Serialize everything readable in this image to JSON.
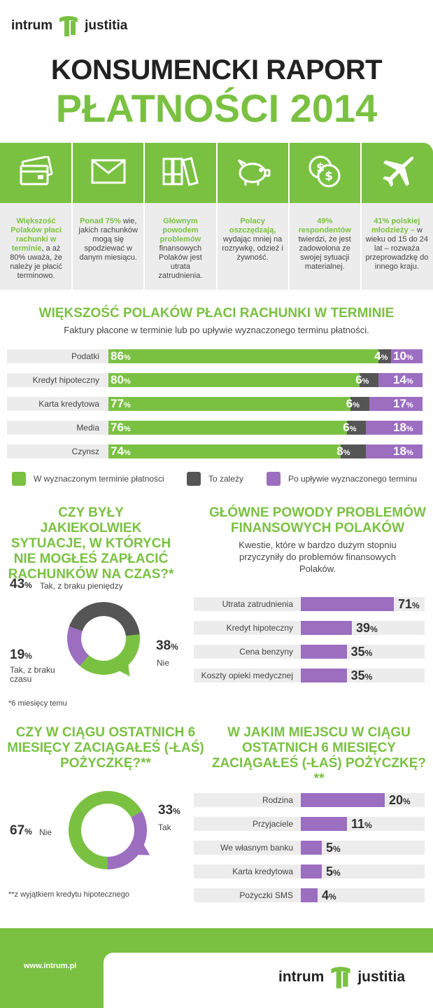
{
  "brand": {
    "left": "intrum",
    "right": "justitia",
    "url": "www.intrum.pl",
    "green": "#7ac142",
    "purple": "#9b6ec0",
    "dark": "#555555"
  },
  "title": {
    "line1": "KONSUMENCKI RAPORT",
    "line2": "PŁATNOŚCI 2014"
  },
  "facts": [
    {
      "icon": "credit-card-icon",
      "bold": "Większość Polaków płaci rachunki w terminie",
      "rest": ", a aż 80% uważa, że należy je płacić terminowo."
    },
    {
      "icon": "envelope-icon",
      "bold": "Ponad 75%",
      "rest": " wie, jakich rachunków mogą się spodziewać w danym miesiącu."
    },
    {
      "icon": "binders-icon",
      "bold": "Głównym powodem problemów",
      "rest": " finansowych Polaków jest utrata zatrudnienia."
    },
    {
      "icon": "piggy-bank-icon",
      "bold": "Polacy oszczędzają,",
      "rest": " wydając mniej na rozrywkę, odzież i żywność."
    },
    {
      "icon": "coins-icon",
      "bold": "49% respondentów",
      "rest": " twierdzi, że jest zadowolona ze swojej sytuacji materialnej."
    },
    {
      "icon": "airplane-icon",
      "bold": "41% polskiej młodzieży –",
      "rest": " w wieku od 15 do 24 lat – rozważa przeprowadzkę do innego kraju."
    }
  ],
  "chart_data": [
    {
      "type": "bar",
      "stacked": true,
      "title": "WIĘKSZOŚĆ POLAKÓW PŁACI RACHUNKI W TERMINIE",
      "subtitle": "Faktury płacone w terminie lub po upływie wyznaczonego terminu płatności.",
      "categories": [
        "Podatki",
        "Kredyt hipoteczny",
        "Karta kredytowa",
        "Media",
        "Czynsz"
      ],
      "series": [
        {
          "name": "W wyznaczonym terminie płatności",
          "color": "#7ac142",
          "values": [
            86,
            80,
            77,
            76,
            74
          ]
        },
        {
          "name": "To zależy",
          "color": "#555555",
          "values": [
            4,
            6,
            6,
            6,
            8
          ]
        },
        {
          "name": "Po upływie wyznaczonego terminu",
          "color": "#9b6ec0",
          "values": [
            10,
            14,
            17,
            18,
            18
          ]
        }
      ],
      "unit": "%"
    },
    {
      "type": "pie",
      "donut": true,
      "title": "CZY BYŁY JAKIEKOLWIEK SYTUACJE, W KTÓRYCH NIE MOGŁEŚ ZAPŁACIĆ RACHUNKÓW NA CZAS?*",
      "slices": [
        {
          "label": "Tak, z braku pieniędzy",
          "value": 43,
          "color": "#555555"
        },
        {
          "label": "Nie",
          "value": 38,
          "color": "#7ac142"
        },
        {
          "label": "Tak, z braku czasu",
          "value": 19,
          "color": "#9b6ec0"
        }
      ],
      "note": "*6 miesięcy temu"
    },
    {
      "type": "bar",
      "orientation": "horizontal",
      "title": "GŁÓWNE POWODY PROBLEMÓW FINANSOWYCH POLAKÓW",
      "subtitle": "Kwestie, które w bardzo dużym stopniu przyczyniły do problemów finansowych Polaków.",
      "categories": [
        "Utrata zatrudnienia",
        "Kredyt hipoteczny",
        "Cena benzyny",
        "Koszty opieki medycznej"
      ],
      "values": [
        71,
        39,
        35,
        35
      ],
      "unit": "%"
    },
    {
      "type": "pie",
      "donut": true,
      "title": "CZY W CIĄGU OSTATNICH 6 MIESIĘCY ZACIĄGAŁEŚ (-ŁAŚ) POŻYCZKĘ?**",
      "slices": [
        {
          "label": "Nie",
          "value": 67,
          "color": "#7ac142"
        },
        {
          "label": "Tak",
          "value": 33,
          "color": "#9b6ec0"
        }
      ],
      "note": "**z wyjątkiem kredytu hipotecznego"
    },
    {
      "type": "bar",
      "orientation": "horizontal",
      "title": "W JAKIM MIEJSCU W CIĄGU OSTATNICH 6 MIESIĘCY ZACIĄGAŁEŚ (-ŁAŚ) POŻYCZKĘ?**",
      "categories": [
        "Rodzina",
        "Przyjaciele",
        "We własnym banku",
        "Karta kredytowa",
        "Pożyczki SMS"
      ],
      "values": [
        20,
        11,
        5,
        5,
        4
      ],
      "unit": "%"
    }
  ]
}
